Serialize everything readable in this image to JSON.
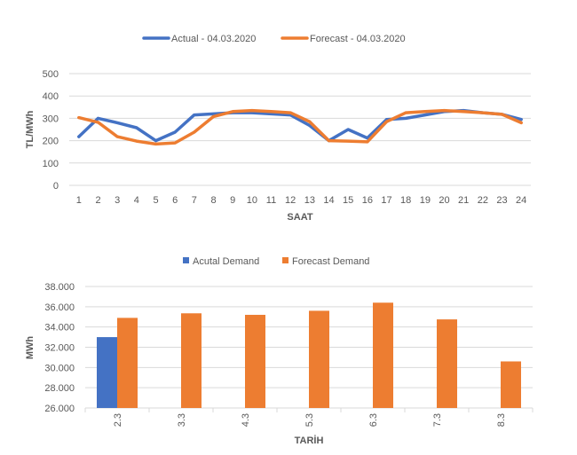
{
  "chart_data": [
    {
      "type": "line",
      "xlabel": "SAAT",
      "ylabel": "TL/MWh",
      "ylim": [
        0,
        500
      ],
      "yticks": [
        "0",
        "100",
        "200",
        "300",
        "400",
        "500"
      ],
      "categories": [
        "1",
        "2",
        "3",
        "4",
        "5",
        "6",
        "7",
        "8",
        "9",
        "10",
        "11",
        "12",
        "13",
        "14",
        "15",
        "16",
        "17",
        "18",
        "19",
        "20",
        "21",
        "22",
        "23",
        "24"
      ],
      "grid": true,
      "legend": "top",
      "series": [
        {
          "name": "Actual - 04.03.2020",
          "color": "#4472C4",
          "values": [
            218,
            300,
            280,
            258,
            200,
            238,
            315,
            320,
            325,
            325,
            320,
            315,
            268,
            200,
            250,
            212,
            295,
            300,
            315,
            330,
            335,
            325,
            318,
            295
          ]
        },
        {
          "name": "Forecast - 04.03.2020",
          "color": "#ED7D31",
          "values": [
            303,
            282,
            218,
            198,
            185,
            190,
            238,
            308,
            330,
            335,
            330,
            325,
            285,
            200,
            198,
            195,
            285,
            325,
            330,
            335,
            330,
            325,
            318,
            280
          ]
        }
      ]
    },
    {
      "type": "bar",
      "xlabel": "TARİH",
      "ylabel": "MWh",
      "ylim": [
        26000,
        38000
      ],
      "yticks": [
        "26.000",
        "28.000",
        "30.000",
        "32.000",
        "34.000",
        "36.000",
        "38.000"
      ],
      "categories": [
        "2.3",
        "3.3",
        "4.3",
        "5.3",
        "6.3",
        "7.3",
        "8.3"
      ],
      "grid": true,
      "legend": "top",
      "series": [
        {
          "name": "Acutal Demand",
          "color": "#4472C4",
          "values": [
            33000,
            null,
            null,
            null,
            null,
            null,
            null
          ]
        },
        {
          "name": "Forecast Demand",
          "color": "#ED7D31",
          "values": [
            34900,
            35350,
            35200,
            35600,
            36400,
            34750,
            30600
          ]
        }
      ]
    }
  ]
}
